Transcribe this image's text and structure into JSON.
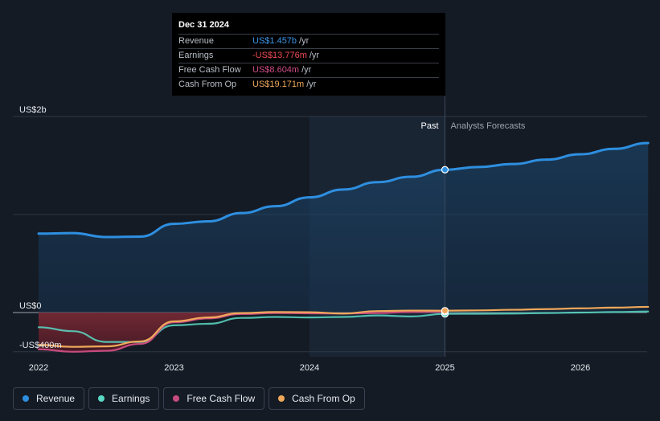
{
  "colors": {
    "revenue": "#2e8fe0",
    "earnings": "#5ad8c4",
    "free_cash_flow": "#c84b7e",
    "cash_from_op": "#efa85a",
    "background": "#151b25"
  },
  "tooltip": {
    "date": "Dec 31 2024",
    "rows": [
      {
        "label": "Revenue",
        "value": "US$1.457b",
        "unit": "/yr",
        "color": "#3b97e8"
      },
      {
        "label": "Earnings",
        "value": "-US$13.776m",
        "unit": "/yr",
        "color": "#ee4b52"
      },
      {
        "label": "Free Cash Flow",
        "value": "US$8.604m",
        "unit": "/yr",
        "color": "#d04c86"
      },
      {
        "label": "Cash From Op",
        "value": "US$19.171m",
        "unit": "/yr",
        "color": "#efa85a"
      }
    ]
  },
  "annotations": {
    "past": "Past",
    "forecast": "Analysts Forecasts"
  },
  "legend": [
    {
      "label": "Revenue",
      "color": "#2e8fe0"
    },
    {
      "label": "Earnings",
      "color": "#5ad8c4"
    },
    {
      "label": "Free Cash Flow",
      "color": "#c84b7e"
    },
    {
      "label": "Cash From Op",
      "color": "#efa85a"
    }
  ],
  "chart_data": {
    "type": "line",
    "title": "",
    "xlabel": "",
    "ylabel": "",
    "y_unit": "US$ millions",
    "ylim": [
      -400,
      2000
    ],
    "y_ticks": [
      {
        "value": 2000,
        "label": "US$2b"
      },
      {
        "value": 0,
        "label": "US$0"
      },
      {
        "value": -400,
        "label": "-US$400m"
      }
    ],
    "xlim": [
      2021.9,
      2026.5
    ],
    "x_ticks": [
      {
        "value": 2022,
        "label": "2022"
      },
      {
        "value": 2023,
        "label": "2023"
      },
      {
        "value": 2024,
        "label": "2024"
      },
      {
        "value": 2025,
        "label": "2025"
      },
      {
        "value": 2026,
        "label": "2026"
      }
    ],
    "past_end": 2025.0,
    "highlight_start": 2024.0,
    "grid": true,
    "legend_position": "bottom",
    "series": [
      {
        "name": "Revenue",
        "key": "revenue",
        "x": [
          2022.0,
          2022.25,
          2022.5,
          2022.75,
          2023.0,
          2023.25,
          2023.5,
          2023.75,
          2024.0,
          2024.25,
          2024.5,
          2024.75,
          2025.0,
          2025.25,
          2025.5,
          2025.75,
          2026.0,
          2026.25,
          2026.5
        ],
        "y": [
          805,
          810,
          770,
          775,
          905,
          930,
          1015,
          1085,
          1175,
          1255,
          1330,
          1385,
          1457,
          1485,
          1515,
          1560,
          1615,
          1670,
          1730
        ]
      },
      {
        "name": "Earnings",
        "key": "earnings",
        "x": [
          2022.0,
          2022.25,
          2022.5,
          2022.75,
          2023.0,
          2023.25,
          2023.5,
          2023.75,
          2024.0,
          2024.25,
          2024.5,
          2024.75,
          2025.0,
          2025.25,
          2025.5,
          2025.75,
          2026.0,
          2026.25,
          2026.5
        ],
        "y": [
          -150,
          -190,
          -300,
          -300,
          -130,
          -115,
          -55,
          -45,
          -50,
          -45,
          -30,
          -40,
          -14,
          -12,
          -10,
          -5,
          0,
          5,
          10
        ]
      },
      {
        "name": "Free Cash Flow",
        "key": "free_cash_flow",
        "x": [
          2022.0,
          2022.25,
          2022.5,
          2022.75,
          2023.0,
          2023.25,
          2023.5,
          2023.75,
          2024.0,
          2024.25,
          2024.5,
          2024.75,
          2025.0
        ],
        "y": [
          -375,
          -400,
          -390,
          -320,
          -100,
          -60,
          -15,
          -5,
          -8,
          -10,
          -5,
          5,
          9
        ]
      },
      {
        "name": "Cash From Op",
        "key": "cash_from_op",
        "x": [
          2022.0,
          2022.25,
          2022.5,
          2022.75,
          2023.0,
          2023.25,
          2023.5,
          2023.75,
          2024.0,
          2024.25,
          2024.5,
          2024.75,
          2025.0,
          2025.25,
          2025.5,
          2025.75,
          2026.0,
          2026.25,
          2026.5
        ],
        "y": [
          -330,
          -350,
          -345,
          -295,
          -90,
          -50,
          -5,
          5,
          3,
          -10,
          15,
          20,
          19,
          22,
          28,
          35,
          43,
          50,
          58
        ]
      }
    ]
  }
}
